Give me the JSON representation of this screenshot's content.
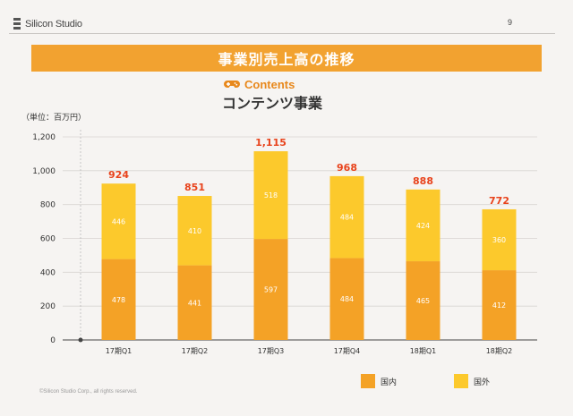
{
  "header": {
    "logo_text": "Silicon Studio",
    "page_number": "9",
    "title": "事業別売上高の推移"
  },
  "section": {
    "contents_label": "Contents",
    "subtitle": "コンテンツ事業",
    "unit_label": "（単位：百万円）"
  },
  "colors": {
    "domestic": "#f4a226",
    "overseas": "#fcc92c",
    "total_label": "#e8431c",
    "accent": "#f2a230"
  },
  "chart_data": {
    "type": "bar",
    "stacked": true,
    "categories": [
      "17期Q1",
      "17期Q2",
      "17期Q3",
      "17期Q4",
      "18期Q1",
      "18期Q2"
    ],
    "series": [
      {
        "name": "国内",
        "values": [
          478,
          441,
          597,
          484,
          465,
          412
        ]
      },
      {
        "name": "国外",
        "values": [
          446,
          410,
          518,
          484,
          424,
          360
        ]
      }
    ],
    "totals": [
      924,
      851,
      1115,
      968,
      888,
      772
    ],
    "total_labels": [
      "924",
      "851",
      "1,115",
      "968",
      "888",
      "772"
    ],
    "yticks": [
      0,
      200,
      400,
      600,
      800,
      1000,
      1200
    ],
    "ytick_labels": [
      "0",
      "200",
      "400",
      "600",
      "800",
      "1,000",
      "1,200"
    ],
    "ylim": [
      0,
      1200
    ],
    "ylabel": "（単位：百万円）",
    "legend_position": "bottom-right",
    "grid": true
  },
  "footer": {
    "copyright": "©Silicon Studio Corp., all rights reserved."
  }
}
